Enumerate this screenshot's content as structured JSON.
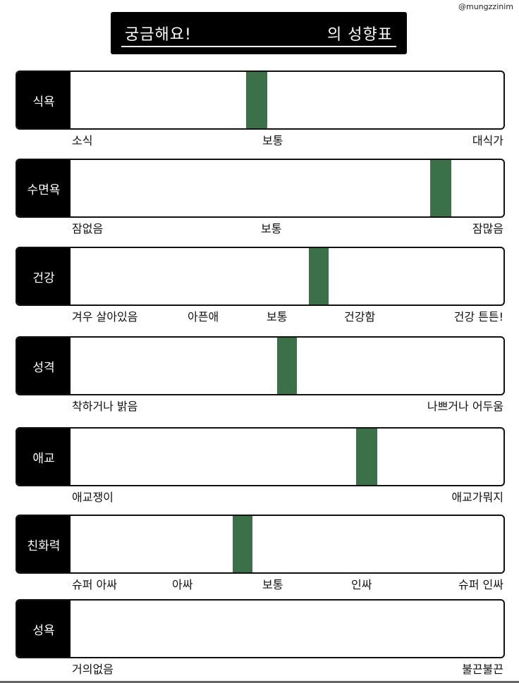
{
  "handle": "@mungzzinim",
  "title": {
    "left": "궁금해요!",
    "right": "의 성향표"
  },
  "rows": [
    {
      "label": "식욕",
      "ticks": [
        "소식",
        "보통",
        "대식가"
      ],
      "level": 0.46
    },
    {
      "label": "수면욕",
      "ticks": [
        "잠없음",
        "보통",
        "잠많음"
      ],
      "level": 0.88
    },
    {
      "label": "건강",
      "ticks": [
        "겨우 살아있음",
        "아픈애",
        "보통",
        "건강함",
        "건강 튼튼!"
      ],
      "level": 0.61
    },
    {
      "label": "성격",
      "ticks": [
        "착하거나 밝음",
        "나쁘거나 어두움"
      ],
      "level": 0.54
    },
    {
      "label": "애교",
      "ticks": [
        "애교쟁이",
        "애교가뭐지"
      ],
      "level": 0.72
    },
    {
      "label": "친화력",
      "ticks": [
        "슈퍼 아싸",
        "아싸",
        "보통",
        "인싸",
        "슈퍼 인싸"
      ],
      "level": 0.42
    },
    {
      "label": "성욕",
      "ticks": [
        "거의없음",
        "불끈불끈"
      ],
      "level": null
    }
  ],
  "colors": {
    "marker": "#3c7048",
    "labelBg": "#000000"
  }
}
